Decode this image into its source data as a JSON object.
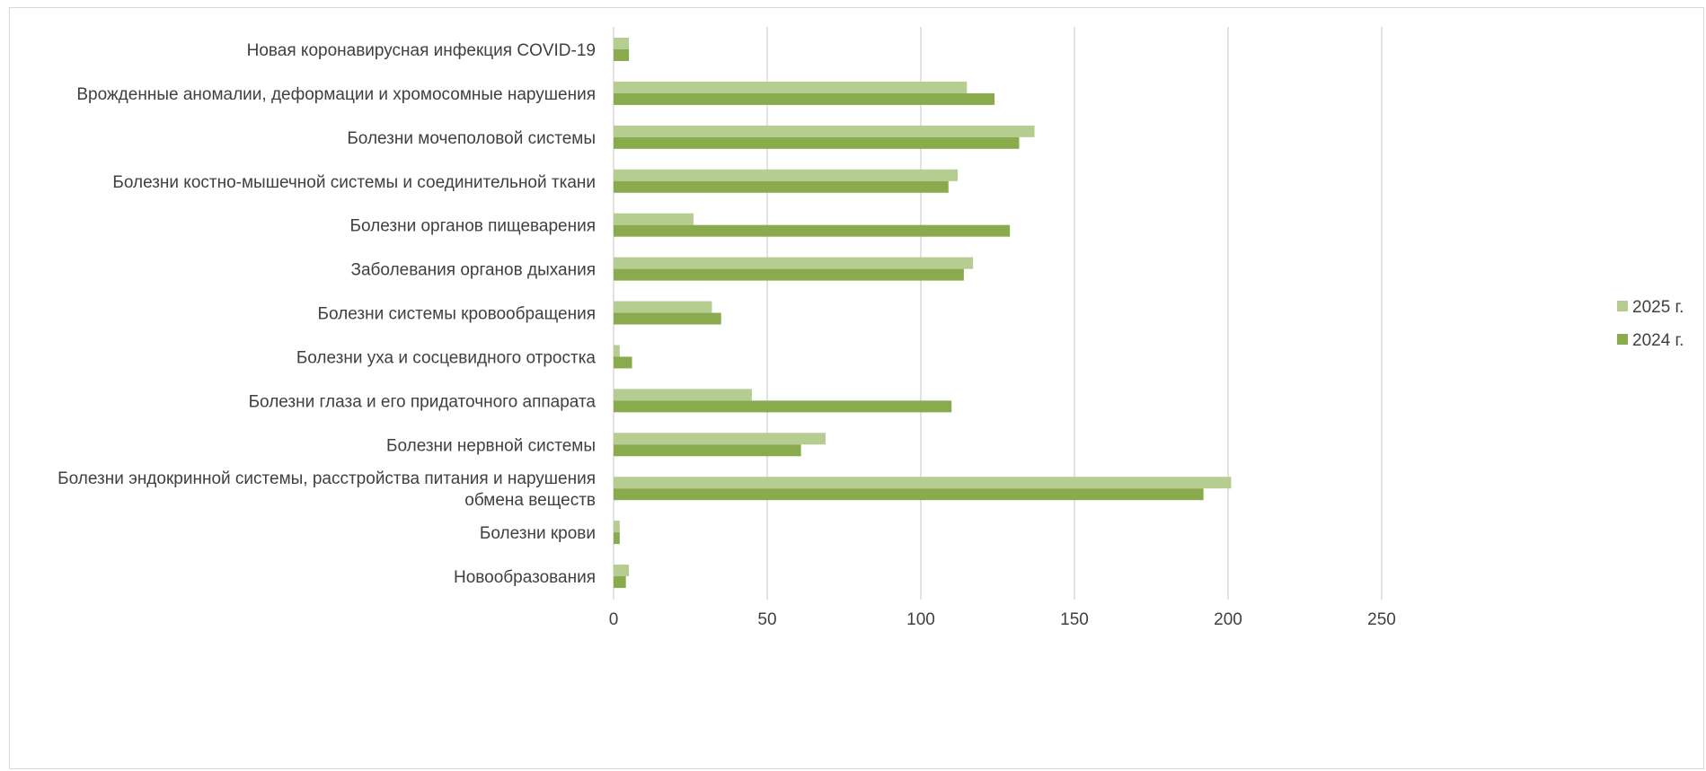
{
  "chart_data": {
    "type": "bar",
    "orientation": "horizontal",
    "title": "",
    "xlabel": "",
    "ylabel": "",
    "xlim": [
      0,
      250
    ],
    "x_ticks": [
      "0",
      "50",
      "100",
      "150",
      "200",
      "250"
    ],
    "grid": "vertical",
    "legend_position": "right",
    "categories": [
      "Новая коронавирусная инфекция COVID-19",
      "Врожденные аномалии, деформации и хромосомные нарушения",
      "Болезни мочеполовой системы",
      "Болезни костно-мышечной системы и соединительной ткани",
      "Болезни органов пищеварения",
      "Заболевания органов дыхания",
      "Болезни системы кровообращения",
      "Болезни уха и сосцевидного отростка",
      "Болезни глаза и его придаточного аппарата",
      "Болезни нервной системы",
      "Болезни эндокринной системы, расстройства питания и нарушения обмена веществ",
      "Болезни крови",
      "Новообразования"
    ],
    "series": [
      {
        "name": "2025 г.",
        "color": "#b5cd91",
        "values": [
          5,
          115,
          137,
          112,
          26,
          117,
          32,
          2,
          45,
          69,
          201,
          2,
          5
        ]
      },
      {
        "name": "2024 г.",
        "color": "#8aaa4e",
        "values": [
          5,
          124,
          132,
          109,
          129,
          114,
          35,
          6,
          110,
          61,
          192,
          2,
          4
        ]
      }
    ]
  }
}
